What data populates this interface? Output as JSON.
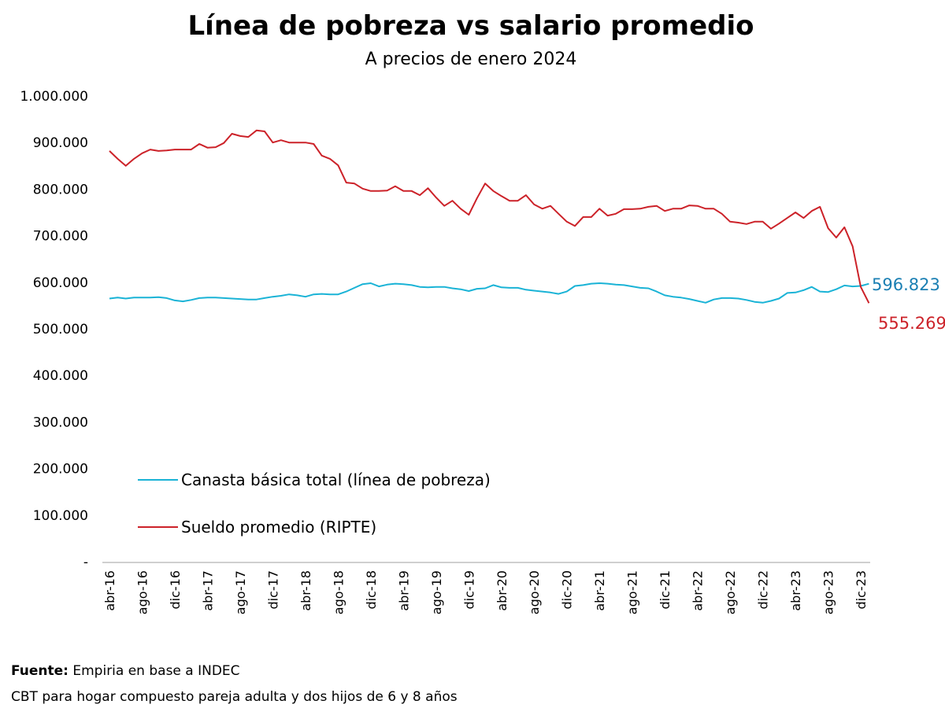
{
  "chart_data": {
    "type": "line",
    "title": "Línea de pobreza vs salario promedio",
    "subtitle": "A precios de enero 2024",
    "ylim": [
      0,
      1000000
    ],
    "y_tick_labels": [
      "-",
      "100.000",
      "200.000",
      "300.000",
      "400.000",
      "500.000",
      "600.000",
      "700.000",
      "800.000",
      "900.000",
      "1.000.000"
    ],
    "y_tick_values": [
      0,
      100000,
      200000,
      300000,
      400000,
      500000,
      600000,
      700000,
      800000,
      900000,
      1000000
    ],
    "x_tick_labels": [
      "abr-16",
      "ago-16",
      "dic-16",
      "abr-17",
      "ago-17",
      "dic-17",
      "abr-18",
      "ago-18",
      "dic-18",
      "abr-19",
      "ago-19",
      "dic-19",
      "abr-20",
      "ago-20",
      "dic-20",
      "abr-21",
      "ago-21",
      "dic-21",
      "abr-22",
      "ago-22",
      "dic-22",
      "abr-23",
      "ago-23",
      "dic-23"
    ],
    "x": [
      "abr-16",
      "may-16",
      "jun-16",
      "jul-16",
      "ago-16",
      "sep-16",
      "oct-16",
      "nov-16",
      "dic-16",
      "ene-17",
      "feb-17",
      "mar-17",
      "abr-17",
      "may-17",
      "jun-17",
      "jul-17",
      "ago-17",
      "sep-17",
      "oct-17",
      "nov-17",
      "dic-17",
      "ene-18",
      "feb-18",
      "mar-18",
      "abr-18",
      "may-18",
      "jun-18",
      "jul-18",
      "ago-18",
      "sep-18",
      "oct-18",
      "nov-18",
      "dic-18",
      "ene-19",
      "feb-19",
      "mar-19",
      "abr-19",
      "may-19",
      "jun-19",
      "jul-19",
      "ago-19",
      "sep-19",
      "oct-19",
      "nov-19",
      "dic-19",
      "ene-20",
      "feb-20",
      "mar-20",
      "abr-20",
      "may-20",
      "jun-20",
      "jul-20",
      "ago-20",
      "sep-20",
      "oct-20",
      "nov-20",
      "dic-20",
      "ene-21",
      "feb-21",
      "mar-21",
      "abr-21",
      "may-21",
      "jun-21",
      "jul-21",
      "ago-21",
      "sep-21",
      "oct-21",
      "nov-21",
      "dic-21",
      "ene-22",
      "feb-22",
      "mar-22",
      "abr-22",
      "may-22",
      "jun-22",
      "jul-22",
      "ago-22",
      "sep-22",
      "oct-22",
      "nov-22",
      "dic-22",
      "ene-23",
      "feb-23",
      "mar-23",
      "abr-23",
      "may-23",
      "jun-23",
      "jul-23",
      "ago-23",
      "sep-23",
      "oct-23",
      "nov-23",
      "dic-23",
      "ene-24"
    ],
    "grid": false,
    "legend_position": "bottom-left inside plot",
    "series": [
      {
        "name": "Canasta básica total (línea de pobreza)",
        "color": "#1ab3d6",
        "end_label": "596.823",
        "end_label_color": "#1a7fb3",
        "values": [
          565000,
          567000,
          565000,
          567000,
          567000,
          567000,
          568000,
          566000,
          561000,
          559000,
          562000,
          566000,
          567000,
          567000,
          566000,
          565000,
          564000,
          563000,
          563000,
          566000,
          569000,
          571000,
          574000,
          572000,
          569000,
          574000,
          575000,
          574000,
          574000,
          580000,
          588000,
          596000,
          598000,
          591000,
          595000,
          597000,
          596000,
          594000,
          590000,
          589000,
          590000,
          590000,
          587000,
          585000,
          581000,
          586000,
          587000,
          594000,
          589000,
          588000,
          588000,
          584000,
          582000,
          580000,
          578000,
          575000,
          580000,
          592000,
          594000,
          597000,
          598000,
          597000,
          595000,
          594000,
          591000,
          588000,
          587000,
          580000,
          572000,
          569000,
          567000,
          564000,
          560000,
          556000,
          563000,
          566000,
          566000,
          565000,
          562000,
          558000,
          556000,
          560000,
          565000,
          577000,
          578000,
          583000,
          590000,
          580000,
          579000,
          585000,
          593000,
          591000,
          592000,
          596823
        ]
      },
      {
        "name": "Sueldo promedio (RIPTE)",
        "color": "#cc2229",
        "end_label": "555.269",
        "end_label_color": "#cc2229",
        "values": [
          882000,
          865000,
          850000,
          865000,
          877000,
          885000,
          882000,
          883000,
          885000,
          885000,
          885000,
          897000,
          889000,
          890000,
          899000,
          919000,
          914000,
          912000,
          926000,
          924000,
          900000,
          905000,
          900000,
          900000,
          900000,
          897000,
          872000,
          865000,
          851000,
          814000,
          812000,
          801000,
          796000,
          796000,
          797000,
          806000,
          796000,
          796000,
          787000,
          802000,
          782000,
          764000,
          775000,
          758000,
          745000,
          780000,
          812000,
          796000,
          785000,
          775000,
          775000,
          787000,
          767000,
          758000,
          764000,
          747000,
          730000,
          721000,
          740000,
          740000,
          758000,
          743000,
          747000,
          757000,
          757000,
          758000,
          762000,
          764000,
          753000,
          758000,
          758000,
          765000,
          764000,
          758000,
          758000,
          747000,
          730000,
          728000,
          725000,
          730000,
          730000,
          715000,
          726000,
          738000,
          750000,
          738000,
          753000,
          762000,
          716000,
          696000,
          718000,
          677000,
          590000,
          555269
        ]
      }
    ]
  },
  "footer": {
    "source_label": "Fuente:",
    "source_text": " Empiria en base a INDEC",
    "note": "CBT para hogar compuesto pareja adulta y dos hijos de 6 y 8 años"
  }
}
